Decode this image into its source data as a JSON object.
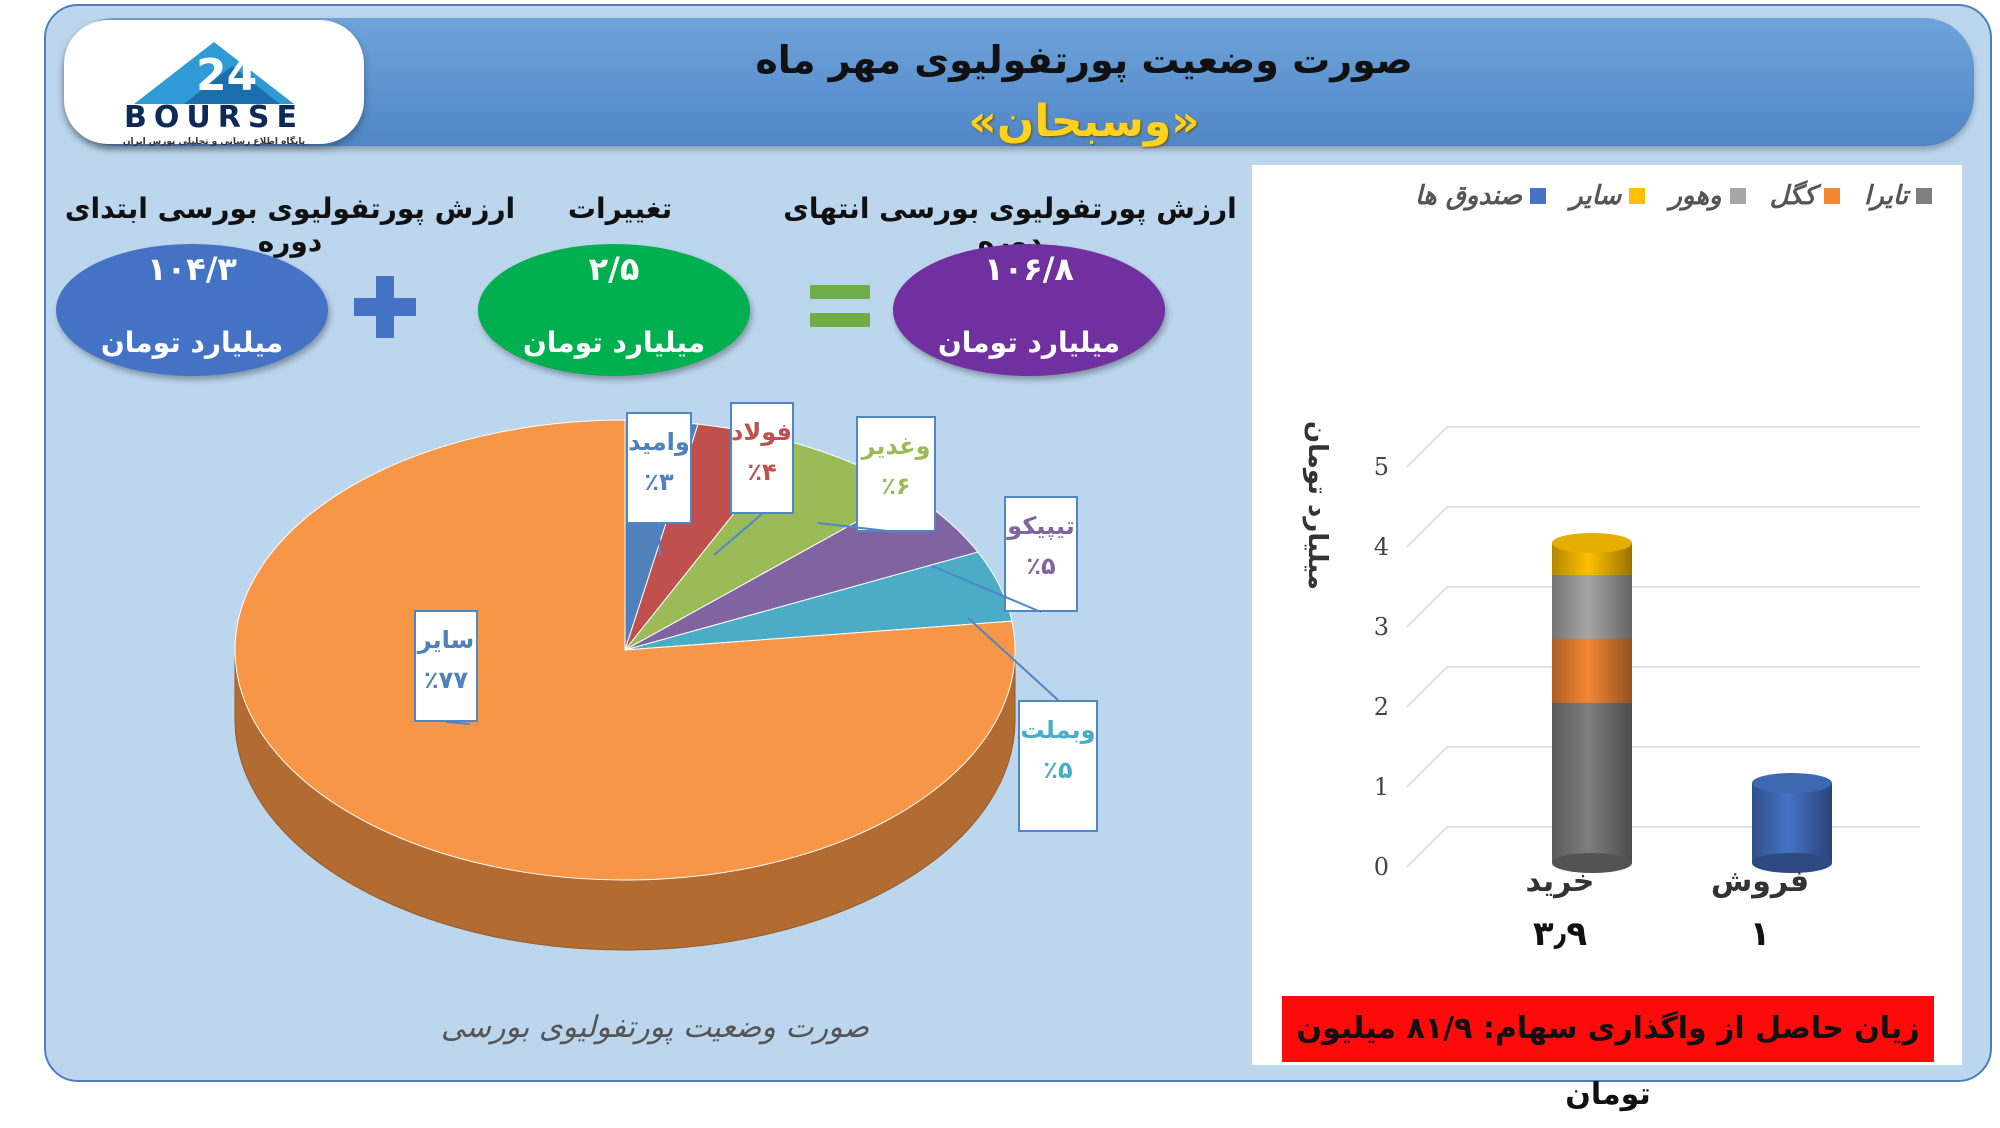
{
  "header": {
    "title": "صورت وضعیت پورتفولیوی مهر ماه",
    "subtitle": "«وسبحان»"
  },
  "logo": {
    "text": "BOURSE",
    "tagline": "پایگاه اطلاع رسانی و تحلیلی بورس ایران"
  },
  "summary": {
    "start": {
      "title": "ارزش پورتفولیوی بورسی ابتدای دوره",
      "value": "۱۰۴/۳",
      "unit": "میلیارد تومان",
      "color": "#4472c4"
    },
    "change": {
      "title": "تغییرات",
      "value": "۲/۵",
      "unit": "میلیارد تومان",
      "color": "#00b050"
    },
    "end": {
      "title": "ارزش پورتفولیوی بورسی انتهای دوره",
      "value": "۱۰۶/۸",
      "unit": "میلیارد تومان",
      "color": "#7030a0"
    }
  },
  "pie_caption": "صورت وضعیت پورتفولیوی بورسی",
  "loss_text": "زیان حاصل از واگذاری سهام: ۸۱/۹ میلیون تومان",
  "chart_data": [
    {
      "type": "pie",
      "title": "",
      "slices": [
        {
          "name": "وامید",
          "label": "٪۳",
          "value": 3,
          "color": "#4f81bd"
        },
        {
          "name": "فولاد",
          "label": "٪۴",
          "value": 4,
          "color": "#c0504d"
        },
        {
          "name": "وغدیر",
          "label": "٪۶",
          "value": 6,
          "color": "#9bbb59"
        },
        {
          "name": "تیپیکو",
          "label": "٪۵",
          "value": 5,
          "color": "#8064a2"
        },
        {
          "name": "وبملت",
          "label": "٪۵",
          "value": 5,
          "color": "#4bacc6"
        },
        {
          "name": "سایر",
          "label": "٪۷۷",
          "value": 77,
          "color": "#f79646"
        }
      ],
      "label_colors": {
        "وامید": "#4f81bd",
        "فولاد": "#c0504d",
        "وغدیر": "#9bbb59",
        "تیپیکو": "#8064a2",
        "وبملت": "#4bacc6",
        "سایر": "#4f81bd"
      }
    },
    {
      "type": "bar",
      "stacked": true,
      "ylabel": "میلیارد تومان",
      "ylim": [
        0,
        5
      ],
      "yticks": [
        "0",
        "1",
        "2",
        "3",
        "4",
        "5"
      ],
      "categories": [
        "خرید",
        "فروش"
      ],
      "category_totals": [
        "۳٫۹",
        "۱"
      ],
      "series": [
        {
          "name": "تایرا",
          "color": "#7f7f7f",
          "values": [
            2.0,
            0
          ]
        },
        {
          "name": "کگل",
          "color": "#f58634",
          "values": [
            0.8,
            0
          ]
        },
        {
          "name": "وهور",
          "color": "#a6a6a6",
          "values": [
            0.8,
            0
          ]
        },
        {
          "name": "سایر",
          "color": "#ffc000",
          "values": [
            0.4,
            0
          ]
        },
        {
          "name": "صندوق ها",
          "color": "#4472c4",
          "values": [
            0,
            1.0
          ]
        }
      ],
      "legend_position": "top"
    }
  ]
}
